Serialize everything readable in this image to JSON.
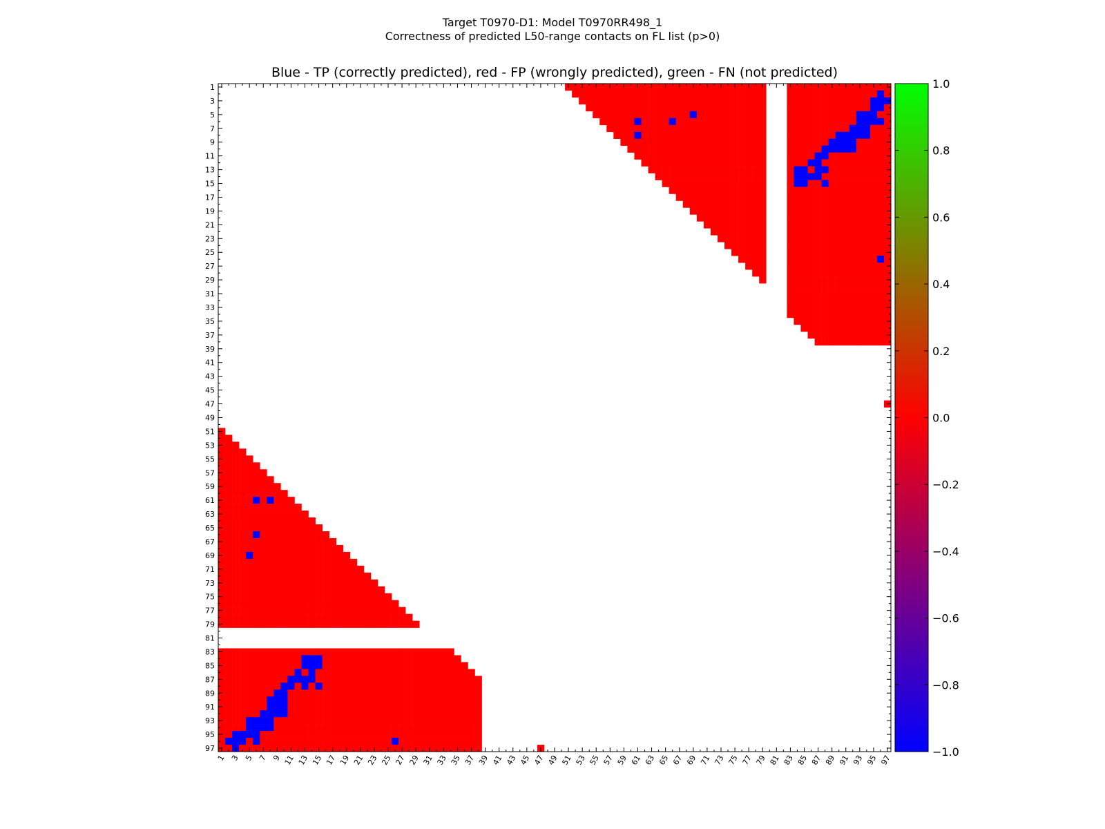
{
  "figure": {
    "suptitle_line1": "Target T0970-D1: Model T0970RR498_1",
    "suptitle_line2": "Correctness of predicted L50-range contacts on FL list (p>0)"
  },
  "colors": {
    "tp": "#0000ff",
    "fp": "#ff0000",
    "fn": "#00ff00",
    "colormap": [
      "#0000ff",
      "#ff0000",
      "#00ff00"
    ]
  },
  "chart_data": {
    "type": "heatmap",
    "title": "Blue - TP (correctly predicted), red - FP (wrongly predicted), green - FN (not predicted)",
    "xlabel": "",
    "ylabel": "",
    "xlim": [
      1,
      97
    ],
    "ylim": [
      1,
      97
    ],
    "y_inverted": true,
    "x_ticks": [
      1,
      3,
      5,
      7,
      9,
      11,
      13,
      15,
      17,
      19,
      21,
      23,
      25,
      27,
      29,
      31,
      33,
      35,
      37,
      39,
      41,
      43,
      45,
      47,
      49,
      51,
      53,
      55,
      57,
      59,
      61,
      63,
      65,
      67,
      69,
      71,
      73,
      75,
      77,
      79,
      81,
      83,
      85,
      87,
      89,
      91,
      93,
      95,
      97
    ],
    "y_ticks": [
      1,
      3,
      5,
      7,
      9,
      11,
      13,
      15,
      17,
      19,
      21,
      23,
      25,
      27,
      29,
      31,
      33,
      35,
      37,
      39,
      41,
      43,
      45,
      47,
      49,
      51,
      53,
      55,
      57,
      59,
      61,
      63,
      65,
      67,
      69,
      71,
      73,
      75,
      77,
      79,
      81,
      83,
      85,
      87,
      89,
      91,
      93,
      95,
      97
    ],
    "value_legend": {
      "-1": "TP (blue)",
      "0": "FP (red)",
      "1": "FN (green)"
    },
    "fp_regions": [
      {
        "rows": [
          1,
          29
        ],
        "col_start_rule": "row+50",
        "cols_end": 79
      },
      {
        "rows": [
          1,
          34
        ],
        "cols": [
          83,
          97
        ]
      },
      {
        "rows": [
          35,
          38
        ],
        "col_start_rule": "row+49",
        "cols_end": 97
      },
      {
        "rows": [
          47,
          47
        ],
        "cols": [
          97,
          97
        ]
      }
    ],
    "tp_cells": [
      [
        2,
        96
      ],
      [
        3,
        95
      ],
      [
        3,
        96
      ],
      [
        3,
        97
      ],
      [
        4,
        95
      ],
      [
        4,
        96
      ],
      [
        5,
        69
      ],
      [
        5,
        93
      ],
      [
        5,
        94
      ],
      [
        5,
        95
      ],
      [
        6,
        61
      ],
      [
        6,
        66
      ],
      [
        6,
        93
      ],
      [
        6,
        94
      ],
      [
        6,
        95
      ],
      [
        6,
        96
      ],
      [
        7,
        92
      ],
      [
        7,
        93
      ],
      [
        7,
        94
      ],
      [
        8,
        61
      ],
      [
        8,
        90
      ],
      [
        8,
        91
      ],
      [
        8,
        92
      ],
      [
        8,
        93
      ],
      [
        8,
        94
      ],
      [
        9,
        89
      ],
      [
        9,
        90
      ],
      [
        9,
        91
      ],
      [
        9,
        92
      ],
      [
        10,
        88
      ],
      [
        10,
        89
      ],
      [
        10,
        90
      ],
      [
        10,
        91
      ],
      [
        10,
        92
      ],
      [
        11,
        87
      ],
      [
        11,
        88
      ],
      [
        12,
        86
      ],
      [
        12,
        87
      ],
      [
        13,
        84
      ],
      [
        13,
        85
      ],
      [
        13,
        87
      ],
      [
        13,
        88
      ],
      [
        14,
        84
      ],
      [
        14,
        85
      ],
      [
        14,
        86
      ],
      [
        14,
        87
      ],
      [
        15,
        84
      ],
      [
        15,
        85
      ],
      [
        15,
        88
      ],
      [
        26,
        96
      ]
    ],
    "colorbar": {
      "min": -1.0,
      "max": 1.0,
      "tick_labels": [
        "1.0",
        "0.8",
        "0.6",
        "0.4",
        "0.2",
        "0.0",
        "−0.2",
        "−0.4",
        "−0.6",
        "−0.8",
        "−1.0"
      ],
      "tick_values": [
        1.0,
        0.8,
        0.6,
        0.4,
        0.2,
        0.0,
        -0.2,
        -0.4,
        -0.6,
        -0.8,
        -1.0
      ]
    }
  }
}
